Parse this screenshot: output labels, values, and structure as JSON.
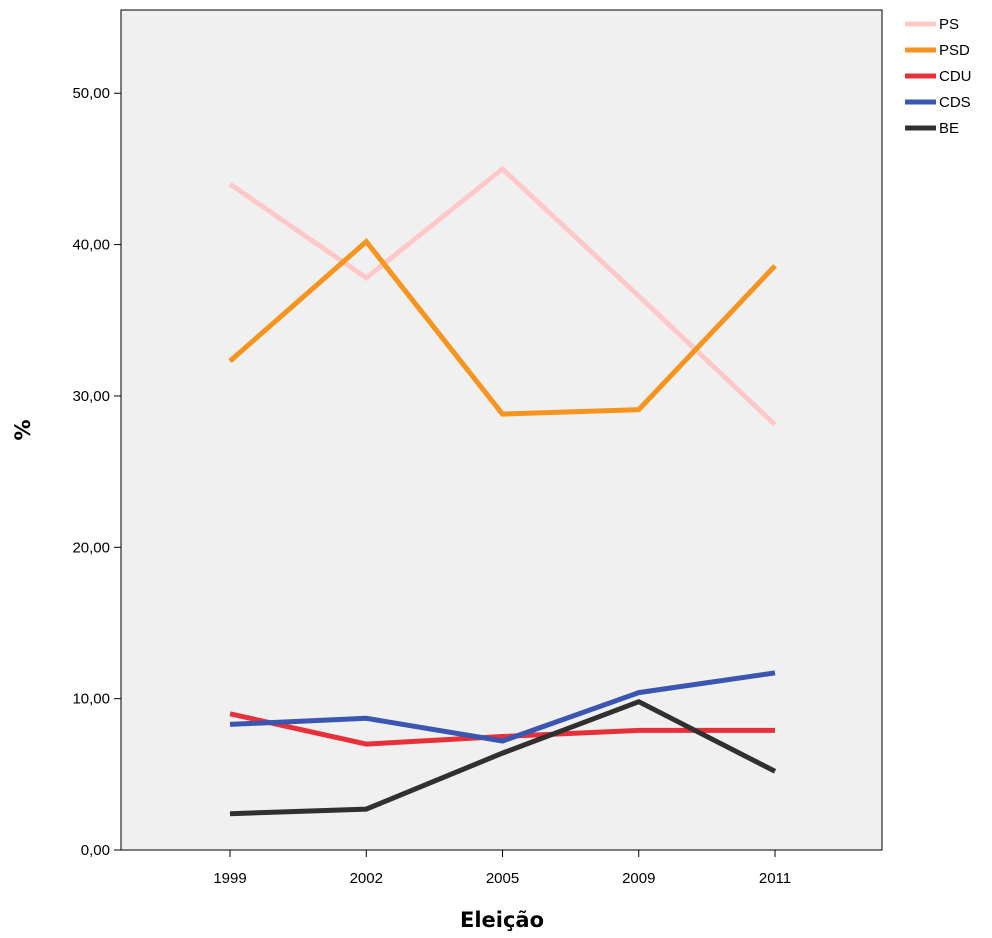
{
  "chart_data": {
    "type": "line",
    "xlabel": "Eleição",
    "ylabel": "%",
    "categories": [
      "1999",
      "2002",
      "2005",
      "2009",
      "2011"
    ],
    "ylim": [
      0,
      55.5
    ],
    "yticks": [
      0,
      10,
      20,
      30,
      40,
      50
    ],
    "ytick_labels": [
      "0,00",
      "10,00",
      "20,00",
      "30,00",
      "40,00",
      "50,00"
    ],
    "grid": false,
    "legend_position": "top-right, outside plot",
    "plot_background": "#f0f0f0",
    "series": [
      {
        "name": "PS",
        "color": "#ffc8c8",
        "values": [
          44.0,
          37.8,
          45.0,
          36.6,
          28.1
        ]
      },
      {
        "name": "PSD",
        "color": "#f7941d",
        "values": [
          32.3,
          40.2,
          28.8,
          29.1,
          38.6
        ]
      },
      {
        "name": "CDU",
        "color": "#e8303a",
        "values": [
          9.0,
          7.0,
          7.5,
          7.9,
          7.9
        ]
      },
      {
        "name": "CDS",
        "color": "#3a56b0",
        "values": [
          8.3,
          8.7,
          7.2,
          10.4,
          11.7
        ]
      },
      {
        "name": "BE",
        "color": "#303030",
        "values": [
          2.4,
          2.7,
          6.4,
          9.8,
          5.2
        ]
      }
    ]
  }
}
